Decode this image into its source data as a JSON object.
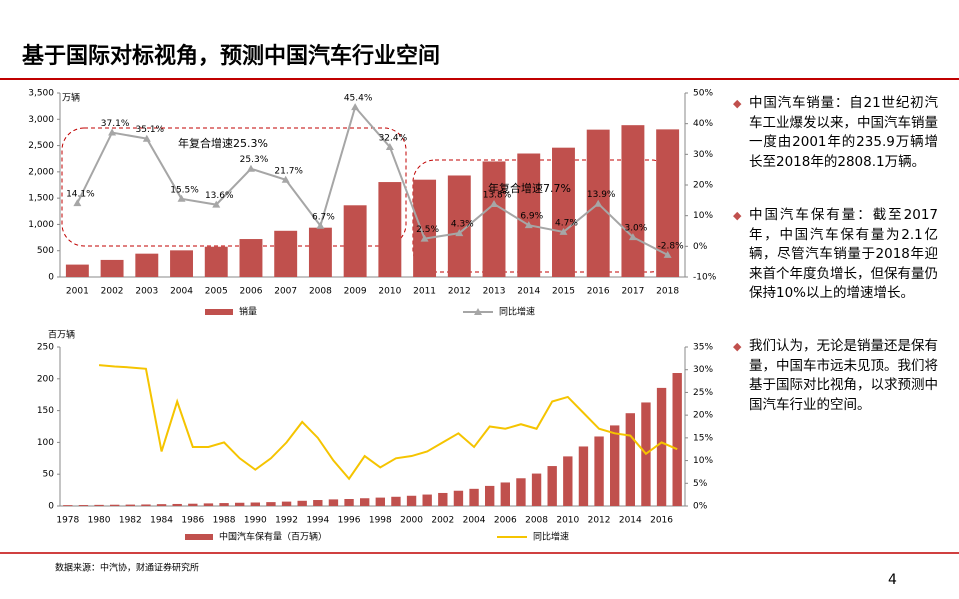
{
  "title": "基于国际对标视角，预测中国汽车行业空间",
  "chart_data": [
    {
      "type": "bar-line",
      "unit_label": "万辆",
      "annotations": [
        "年复合增速25.3%",
        "年复合增速7.7%"
      ],
      "categories": [
        2001,
        2002,
        2003,
        2004,
        2005,
        2006,
        2007,
        2008,
        2009,
        2010,
        2011,
        2012,
        2013,
        2014,
        2015,
        2016,
        2017,
        2018
      ],
      "series": [
        {
          "name": "销量",
          "color": "#c0504d",
          "values": [
            235.9,
            325,
            444,
            507,
            576,
            722,
            879,
            938,
            1364,
            1806,
            1851,
            1931,
            2198,
            2349,
            2460,
            2803,
            2888,
            2808.1
          ]
        },
        {
          "name": "同比增速",
          "color": "#a6a6a6",
          "axis": "y2",
          "marker": "triangle",
          "values": [
            14.1,
            37.1,
            35.1,
            15.5,
            13.6,
            25.3,
            21.7,
            6.7,
            45.4,
            32.4,
            2.5,
            4.3,
            13.8,
            6.9,
            4.7,
            13.9,
            3.0,
            -2.8
          ],
          "value_labels": [
            "14.1%",
            "37.1%",
            "35.1%",
            "15.5%",
            "13.6%",
            "25.3%",
            "21.7%",
            "6.7%",
            "45.4%",
            "32.4%",
            "2.5%",
            "4.3%",
            "13.8%",
            "6.9%",
            "4.7%",
            "13.9%",
            "3.0%",
            "-2.8%"
          ]
        }
      ],
      "ylim": [
        0,
        3500
      ],
      "yticks": [
        0,
        500,
        {
          "value": 1000,
          "label": "1,000"
        },
        {
          "value": 1500,
          "label": "1,500"
        },
        {
          "value": 2000,
          "label": "2,000"
        },
        {
          "value": 2500,
          "label": "2,500"
        },
        {
          "value": 3000,
          "label": "3,000"
        },
        {
          "value": 3500,
          "label": "3,500"
        }
      ],
      "y2lim": [
        -10,
        50
      ],
      "y2ticks": [
        {
          "value": -10,
          "label": "-10%"
        },
        {
          "value": 0,
          "label": "0%"
        },
        {
          "value": 10,
          "label": "10%"
        },
        {
          "value": 20,
          "label": "20%"
        },
        {
          "value": 30,
          "label": "30%"
        },
        {
          "value": 40,
          "label": "40%"
        },
        {
          "value": 50,
          "label": "50%"
        }
      ]
    },
    {
      "type": "bar-line",
      "unit_label": "百万辆",
      "categories": [
        1978,
        null,
        1980,
        null,
        1982,
        null,
        1984,
        null,
        1986,
        null,
        1988,
        null,
        1990,
        null,
        1992,
        null,
        1994,
        null,
        1996,
        null,
        1998,
        null,
        2000,
        null,
        2002,
        null,
        2004,
        null,
        2006,
        null,
        2008,
        null,
        2010,
        null,
        2012,
        null,
        2014,
        null,
        2016,
        null
      ],
      "series": [
        {
          "name": "中国汽车保有量（百万辆）",
          "color": "#c0504d",
          "values": [
            1.36,
            1.5,
            1.78,
            2.0,
            2.2,
            2.4,
            2.9,
            3.2,
            3.6,
            4.1,
            4.6,
            5.1,
            5.5,
            6.1,
            6.9,
            8.2,
            9.4,
            10.4,
            11.0,
            12.2,
            13.2,
            14.5,
            16.1,
            18.0,
            20.5,
            24.0,
            27.0,
            31.6,
            37.0,
            43.6,
            51.0,
            62.8,
            78.0,
            93.6,
            109.3,
            126.7,
            145.9,
            162.8,
            185.7,
            209.1
          ]
        },
        {
          "name": "同比增速",
          "color": "#f5c400",
          "axis": "y2",
          "values": [
            null,
            null,
            31,
            30.7,
            30.5,
            30.2,
            12,
            23,
            13,
            13,
            14,
            10.5,
            8,
            10.5,
            14,
            18.5,
            15,
            10,
            6,
            11,
            8.5,
            10.5,
            11,
            12,
            14,
            16,
            13,
            17.5,
            17,
            18,
            17,
            23,
            24,
            20.5,
            17,
            16,
            15.5,
            11.5,
            14,
            12.5
          ]
        }
      ],
      "ylim": [
        0,
        250
      ],
      "yticks": [
        0,
        50,
        100,
        150,
        200,
        250
      ],
      "y2lim": [
        0,
        35
      ],
      "y2ticks": [
        {
          "value": 0,
          "label": "0%"
        },
        {
          "value": 5,
          "label": "5%"
        },
        {
          "value": 10,
          "label": "10%"
        },
        {
          "value": 15,
          "label": "15%"
        },
        {
          "value": 20,
          "label": "20%"
        },
        {
          "value": 25,
          "label": "25%"
        },
        {
          "value": 30,
          "label": "30%"
        },
        {
          "value": 35,
          "label": "35%"
        }
      ]
    }
  ],
  "notes": [
    "中国汽车销量：自21世纪初汽车工业爆发以来，中国汽车销量一度由2001年的235.9万辆增长至2018年的2808.1万辆。",
    "中国汽车保有量：截至2017年，中国汽车保有量为2.1亿辆，尽管汽车销量于2018年迎来首个年度负增长，但保有量仍保持10%以上的增速增长。",
    "我们认为，无论是销量还是保有量，中国车市远未见顶。我们将基于国际对比视角，以求预测中国汽车行业的空间。"
  ],
  "source": "数据来源：中汽协，财通证券研究所",
  "page": 4
}
